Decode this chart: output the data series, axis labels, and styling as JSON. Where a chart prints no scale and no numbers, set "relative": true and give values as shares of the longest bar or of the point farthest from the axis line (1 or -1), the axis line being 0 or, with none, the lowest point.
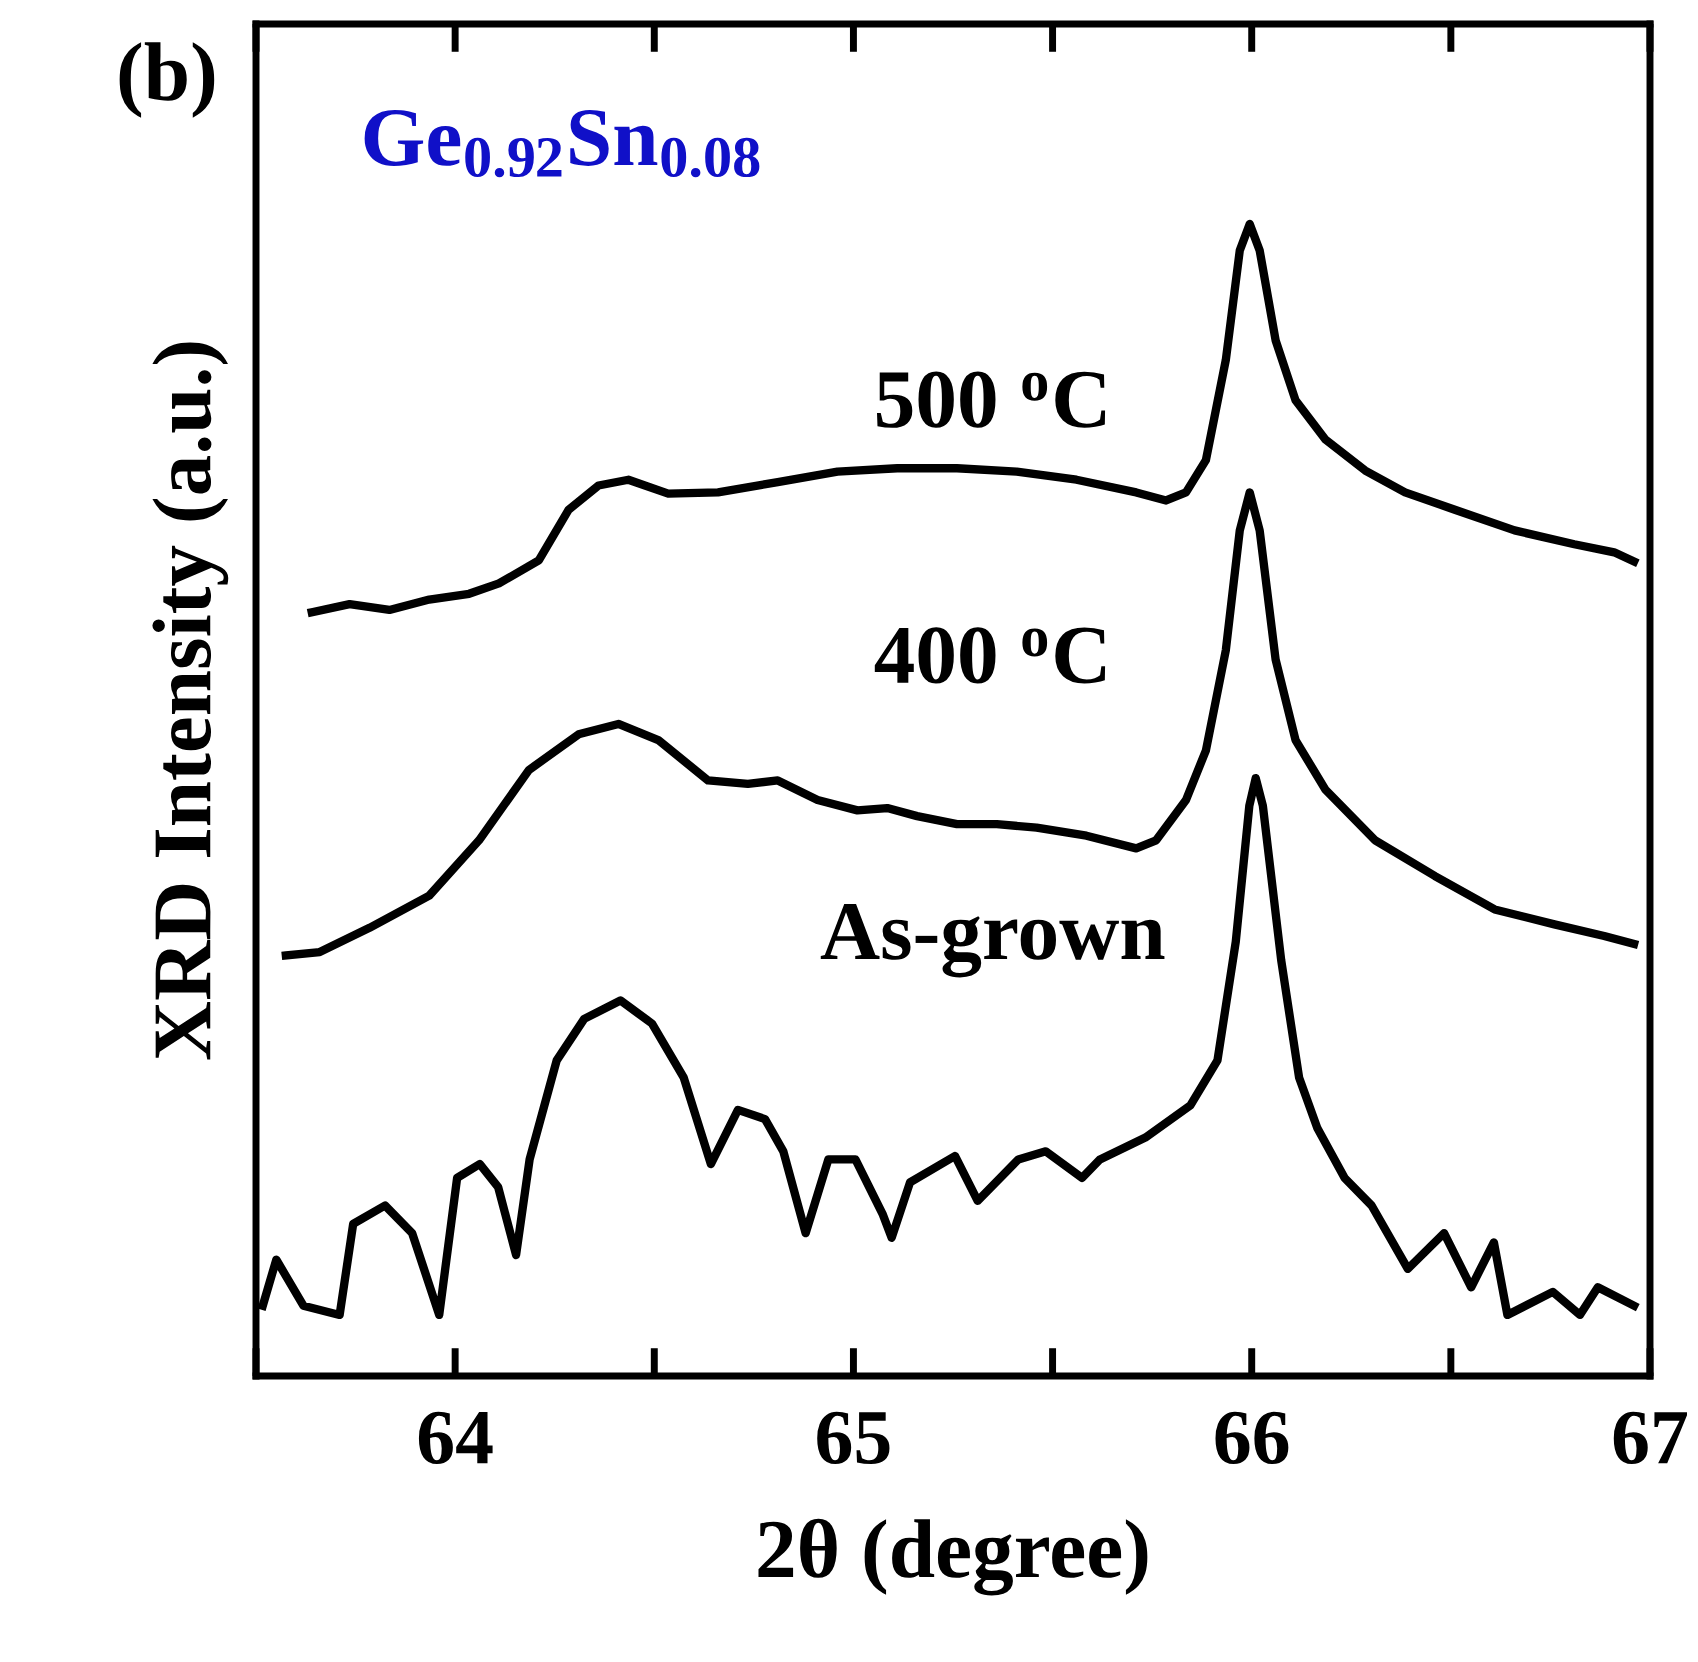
{
  "chart_data": {
    "type": "line",
    "relative": true,
    "xlabel": "2θ (degree)",
    "ylabel": "XRD Intensity (a.u.)",
    "annotations": [
      "(b)",
      "Ge$_{0.92}$Sn$_{0.08}$"
    ],
    "xlim": [
      63.5,
      67
    ],
    "xticks": [
      {
        "value": 63.5,
        "label": null
      },
      64,
      {
        "value": 64.5,
        "label": null
      },
      65,
      {
        "value": 65.5,
        "label": null
      },
      66,
      {
        "value": 66.5,
        "label": null
      },
      67
    ],
    "grid": false,
    "legend": false,
    "marker": "none",
    "line_style": "solid",
    "series": [
      {
        "name": "500 $^{o}$C",
        "color": "#000000",
        "x": [
          63.64,
          63.735,
          63.835,
          63.935,
          64.035,
          64.11,
          64.21,
          64.285,
          64.36,
          64.435,
          64.535,
          64.66,
          64.81,
          64.96,
          65.11,
          65.26,
          65.41,
          65.56,
          65.71,
          65.785,
          65.835,
          65.885,
          65.935,
          65.97,
          65.995,
          66.02,
          66.06,
          66.11,
          66.185,
          66.285,
          66.385,
          66.51,
          66.66,
          66.81,
          66.91,
          66.96
        ],
        "values": [
          0.663,
          0.67,
          0.665,
          0.674,
          0.679,
          0.688,
          0.708,
          0.752,
          0.773,
          0.778,
          0.766,
          0.767,
          0.776,
          0.785,
          0.788,
          0.788,
          0.785,
          0.778,
          0.767,
          0.76,
          0.767,
          0.795,
          0.882,
          0.977,
          1.0,
          0.977,
          0.899,
          0.847,
          0.813,
          0.786,
          0.767,
          0.752,
          0.734,
          0.722,
          0.715,
          0.707
        ]
      },
      {
        "name": "400 $^{o}$C",
        "color": "#000000",
        "x": [
          63.575,
          63.66,
          63.785,
          63.935,
          64.06,
          64.185,
          64.31,
          64.41,
          64.51,
          64.635,
          64.735,
          64.81,
          64.91,
          65.01,
          65.085,
          65.16,
          65.26,
          65.36,
          65.46,
          65.585,
          65.71,
          65.76,
          65.835,
          65.885,
          65.935,
          65.97,
          65.995,
          66.02,
          66.06,
          66.11,
          66.185,
          66.31,
          66.46,
          66.61,
          66.76,
          66.885,
          66.96
        ],
        "values": [
          0.365,
          0.368,
          0.389,
          0.417,
          0.465,
          0.526,
          0.557,
          0.566,
          0.552,
          0.517,
          0.514,
          0.517,
          0.5,
          0.491,
          0.493,
          0.486,
          0.479,
          0.479,
          0.476,
          0.469,
          0.458,
          0.465,
          0.5,
          0.543,
          0.63,
          0.734,
          0.767,
          0.734,
          0.622,
          0.552,
          0.509,
          0.465,
          0.434,
          0.405,
          0.392,
          0.382,
          0.375
        ]
      },
      {
        "name": "As-grown",
        "color": "#000000",
        "x": [
          63.517,
          63.551,
          63.619,
          63.71,
          63.744,
          63.824,
          63.892,
          63.96,
          64.005,
          64.062,
          64.108,
          64.153,
          64.187,
          64.255,
          64.324,
          64.415,
          64.494,
          64.574,
          64.642,
          64.71,
          64.778,
          64.824,
          64.88,
          64.937,
          65.005,
          65.074,
          65.096,
          65.142,
          65.255,
          65.312,
          65.414,
          65.483,
          65.574,
          65.619,
          65.733,
          65.846,
          65.914,
          65.96,
          65.994,
          66.01,
          66.028,
          66.074,
          66.119,
          66.165,
          66.233,
          66.301,
          66.392,
          66.483,
          66.551,
          66.608,
          66.642,
          66.756,
          66.824,
          66.869,
          66.96
        ],
        "values": [
          0.061,
          0.101,
          0.061,
          0.053,
          0.132,
          0.148,
          0.124,
          0.053,
          0.172,
          0.184,
          0.164,
          0.105,
          0.188,
          0.274,
          0.31,
          0.326,
          0.306,
          0.259,
          0.184,
          0.231,
          0.223,
          0.195,
          0.124,
          0.188,
          0.188,
          0.14,
          0.12,
          0.168,
          0.191,
          0.152,
          0.188,
          0.195,
          0.172,
          0.188,
          0.207,
          0.235,
          0.274,
          0.377,
          0.495,
          0.519,
          0.495,
          0.361,
          0.259,
          0.215,
          0.172,
          0.148,
          0.093,
          0.124,
          0.077,
          0.116,
          0.053,
          0.073,
          0.053,
          0.077,
          0.061
        ]
      }
    ]
  }
}
